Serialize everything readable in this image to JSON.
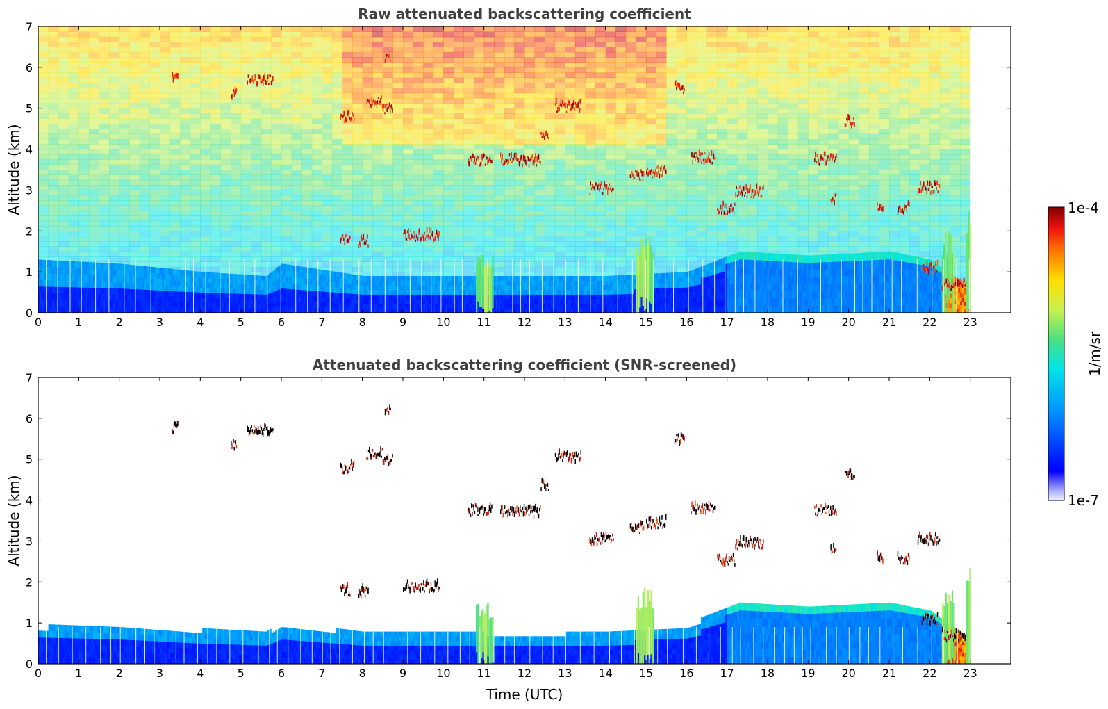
{
  "chart_data": [
    {
      "type": "heatmap",
      "title": "Raw attenuated backscattering coefficient",
      "xlabel": "",
      "ylabel": "Altitude (km)",
      "xlim": [
        0,
        24
      ],
      "ylim": [
        0,
        7
      ],
      "x_ticks": [
        "0",
        "1",
        "2",
        "3",
        "4",
        "5",
        "6",
        "7",
        "8",
        "9",
        "10",
        "11",
        "12",
        "13",
        "14",
        "15",
        "16",
        "17",
        "18",
        "19",
        "20",
        "21",
        "22",
        "23"
      ],
      "y_ticks": [
        "0",
        "1",
        "2",
        "3",
        "4",
        "5",
        "6",
        "7"
      ],
      "data_end_time_h": 23,
      "colorscale": "jet",
      "noise_fill": true,
      "boundary_layer": [
        {
          "t": 0,
          "top": 0.65,
          "aerosol_top": 1.3
        },
        {
          "t": 2,
          "top": 0.7,
          "aerosol_top": 1.2
        },
        {
          "t": 4,
          "top": 0.6,
          "aerosol_top": 1.0
        },
        {
          "t": 5.6,
          "top": 0.55,
          "aerosol_top": 0.9
        },
        {
          "t": 6,
          "top": 0.7,
          "aerosol_top": 1.2
        },
        {
          "t": 8,
          "top": 0.55,
          "aerosol_top": 0.9
        },
        {
          "t": 10,
          "top": 0.55,
          "aerosol_top": 0.9
        },
        {
          "t": 12,
          "top": 0.5,
          "aerosol_top": 0.9
        },
        {
          "t": 14,
          "top": 0.55,
          "aerosol_top": 0.9
        },
        {
          "t": 16,
          "top": 0.65,
          "aerosol_top": 1.0
        },
        {
          "t": 17.3,
          "top": 1.4,
          "aerosol_top": 1.5
        },
        {
          "t": 19,
          "top": 1.3,
          "aerosol_top": 1.4
        },
        {
          "t": 21,
          "top": 1.35,
          "aerosol_top": 1.5
        },
        {
          "t": 22,
          "top": 1.2,
          "aerosol_top": 1.3
        },
        {
          "t": 23,
          "top": 0.5,
          "aerosol_top": 0.6
        }
      ],
      "cloud_layers": [
        {
          "t0": 3.3,
          "t1": 3.45,
          "alt": 5.72
        },
        {
          "t0": 4.75,
          "t1": 4.9,
          "alt": 5.3
        },
        {
          "t0": 5.15,
          "t1": 5.8,
          "alt": 5.65
        },
        {
          "t0": 7.45,
          "t1": 7.7,
          "alt": 1.75
        },
        {
          "t0": 7.45,
          "t1": 7.8,
          "alt": 4.75
        },
        {
          "t0": 7.9,
          "t1": 8.15,
          "alt": 1.7
        },
        {
          "t0": 8.1,
          "t1": 8.5,
          "alt": 5.1
        },
        {
          "t0": 8.5,
          "t1": 8.75,
          "alt": 4.95
        },
        {
          "t0": 8.55,
          "t1": 8.7,
          "alt": 6.2
        },
        {
          "t0": 9.0,
          "t1": 9.9,
          "alt": 1.85
        },
        {
          "t0": 10.6,
          "t1": 11.2,
          "alt": 3.7
        },
        {
          "t0": 11.4,
          "t1": 11.9,
          "alt": 3.7
        },
        {
          "t0": 11.9,
          "t1": 12.4,
          "alt": 3.67
        },
        {
          "t0": 12.4,
          "t1": 12.6,
          "alt": 4.3
        },
        {
          "t0": 12.75,
          "t1": 13.4,
          "alt": 5.0
        },
        {
          "t0": 13.6,
          "t1": 14.2,
          "alt": 3.0
        },
        {
          "t0": 14.6,
          "t1": 14.95,
          "alt": 3.3
        },
        {
          "t0": 15.0,
          "t1": 15.5,
          "alt": 3.4
        },
        {
          "t0": 15.7,
          "t1": 15.95,
          "alt": 5.45
        },
        {
          "t0": 16.1,
          "t1": 16.7,
          "alt": 3.75
        },
        {
          "t0": 16.75,
          "t1": 17.2,
          "alt": 2.5
        },
        {
          "t0": 17.2,
          "t1": 17.9,
          "alt": 2.9
        },
        {
          "t0": 19.15,
          "t1": 19.7,
          "alt": 3.7
        },
        {
          "t0": 19.55,
          "t1": 19.7,
          "alt": 2.75
        },
        {
          "t0": 19.9,
          "t1": 20.15,
          "alt": 4.6
        },
        {
          "t0": 20.7,
          "t1": 20.85,
          "alt": 2.55
        },
        {
          "t0": 21.2,
          "t1": 21.5,
          "alt": 2.5
        },
        {
          "t0": 21.7,
          "t1": 22.25,
          "alt": 3.0
        },
        {
          "t0": 21.8,
          "t1": 22.2,
          "alt": 1.05
        },
        {
          "t0": 22.3,
          "t1": 22.9,
          "alt": 0.65
        }
      ],
      "precip_columns": [
        {
          "t0": 10.8,
          "t1": 11.2,
          "top": 1.5
        },
        {
          "t0": 14.75,
          "t1": 15.15,
          "top": 1.9
        },
        {
          "t0": 22.3,
          "t1": 22.6,
          "top": 2.0
        },
        {
          "t0": 22.9,
          "t1": 23.0,
          "top": 2.5
        }
      ]
    },
    {
      "type": "heatmap",
      "title": "Attenuated backscattering coefficient (SNR-screened)",
      "xlabel": "Time (UTC)",
      "ylabel": "Altitude (km)",
      "xlim": [
        0,
        24
      ],
      "ylim": [
        0,
        7
      ],
      "x_ticks": [
        "0",
        "1",
        "2",
        "3",
        "4",
        "5",
        "6",
        "7",
        "8",
        "9",
        "10",
        "11",
        "12",
        "13",
        "14",
        "15",
        "16",
        "17",
        "18",
        "19",
        "20",
        "21",
        "22",
        "23"
      ],
      "y_ticks": [
        "0",
        "1",
        "2",
        "3",
        "4",
        "5",
        "6",
        "7"
      ],
      "data_end_time_h": 23,
      "colorscale": "jet",
      "noise_fill": false,
      "screened": true
    }
  ],
  "colorbar": {
    "label": "1/m/sr",
    "max_label": "1e-4",
    "min_label": "1e-7",
    "scale": "log",
    "range": [
      1e-07,
      0.0001
    ]
  }
}
